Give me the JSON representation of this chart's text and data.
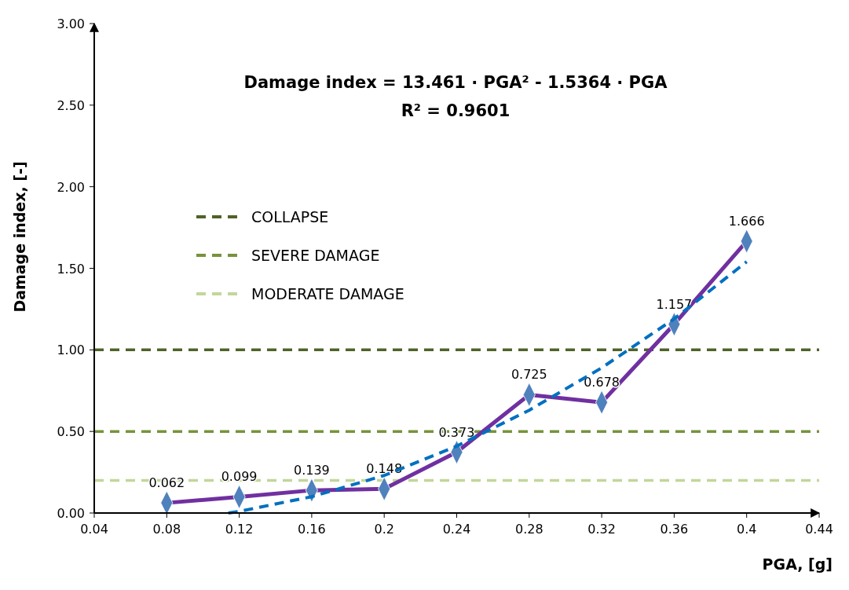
{
  "chart_data": {
    "type": "line",
    "xlabel": "PGA, [g]",
    "ylabel": "Damage index, [-]",
    "annotations": [
      "Damage index = 13.461 · PGA² - 1.5364 · PGA",
      "R² = 0.9601"
    ],
    "xlim": [
      0.04,
      0.44
    ],
    "xticks": [
      0.04,
      0.08,
      0.12,
      0.16,
      0.2,
      0.24,
      0.28,
      0.32,
      0.36,
      0.4,
      0.44
    ],
    "ylim": [
      0,
      3
    ],
    "yticks": [
      {
        "value": 0,
        "label": "0.00"
      },
      {
        "value": 0.5,
        "label": "0.50"
      },
      {
        "value": 1,
        "label": "1.00"
      },
      {
        "value": 1.5,
        "label": "1.50"
      },
      {
        "value": 2,
        "label": "2.00"
      },
      {
        "value": 2.5,
        "label": "2.50"
      },
      {
        "value": 3,
        "label": "3.00"
      }
    ],
    "grid": false,
    "legend": "left",
    "series": [
      {
        "color": "#7030a0",
        "colors": [
          "#4f81bd",
          "#4f81bd",
          "#4f81bd",
          "#4f81bd",
          "#4f81bd",
          "#4f81bd",
          "#4f81bd",
          "#4f81bd",
          "#4f81bd"
        ],
        "marker": "diamond",
        "line_style": "solid",
        "data_labels": true,
        "x": [
          0.08,
          0.12,
          0.16,
          0.2,
          0.24,
          0.28,
          0.32,
          0.36,
          0.4
        ],
        "values": [
          0.062,
          0.099,
          0.139,
          0.148,
          0.373,
          0.725,
          0.678,
          1.157,
          1.666
        ]
      },
      {
        "color": "#0070c0",
        "marker": "none",
        "line_style": "dashed",
        "x": [
          0.114,
          0.12,
          0.16,
          0.2,
          0.24,
          0.28,
          0.32,
          0.36,
          0.4
        ],
        "values": [
          0,
          0.01,
          0.1,
          0.23,
          0.41,
          0.63,
          0.89,
          1.19,
          1.54
        ]
      }
    ],
    "ref_lines": [
      {
        "axis": "y",
        "value": 1,
        "label": "COLLAPSE",
        "color": "#4f6228",
        "line_style": "dashed"
      },
      {
        "axis": "y",
        "value": 0.5,
        "label": "SEVERE DAMAGE",
        "color": "#77933c",
        "line_style": "dashed"
      },
      {
        "axis": "y",
        "value": 0.2,
        "label": "MODERATE DAMAGE",
        "color": "#c3d69b",
        "line_style": "dashed"
      }
    ]
  }
}
